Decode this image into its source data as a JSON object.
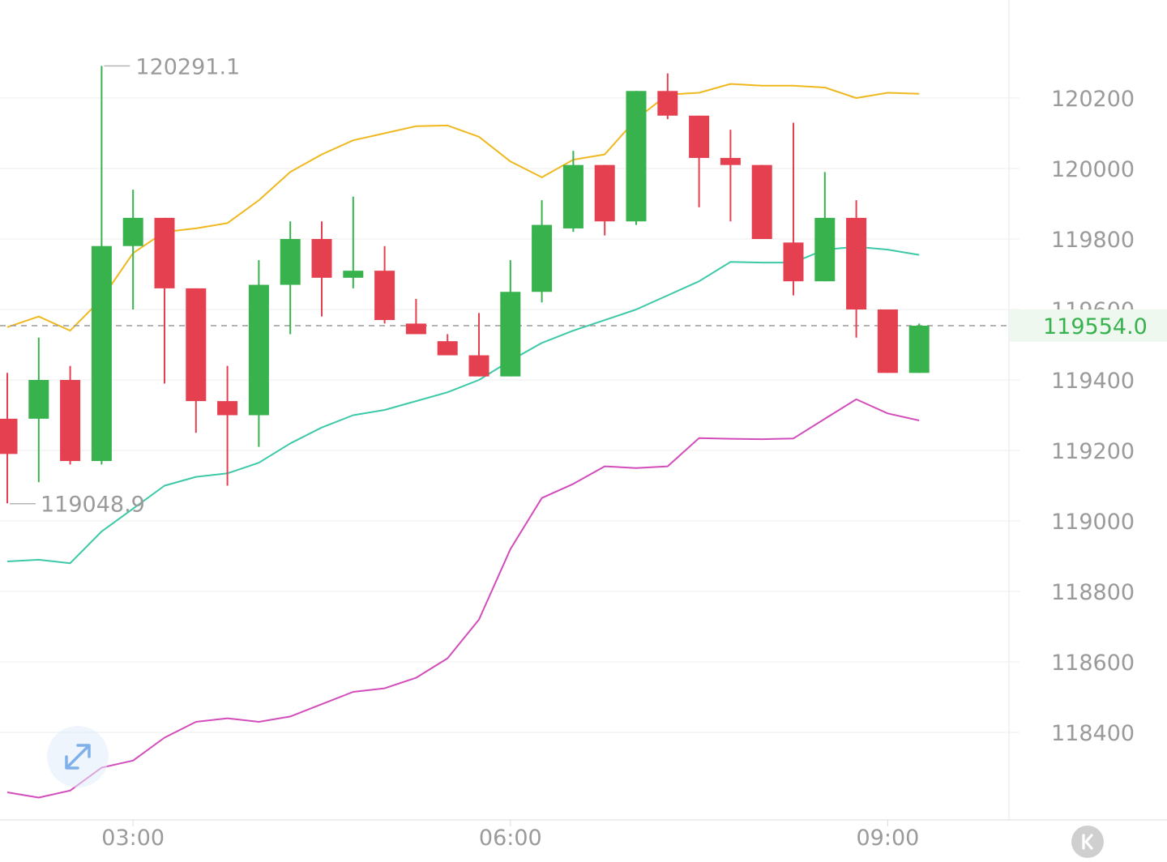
{
  "chart_data": {
    "type": "candlestick",
    "price_scale": {
      "ylim": [
        118200,
        120420
      ],
      "ticks": [
        {
          "value": 120200,
          "label": "120200"
        },
        {
          "value": 120000,
          "label": "120000"
        },
        {
          "value": 119800,
          "label": "119800"
        },
        {
          "value": 119600,
          "label": "119600"
        },
        {
          "value": 119400,
          "label": "119400"
        },
        {
          "value": 119200,
          "label": "119200"
        },
        {
          "value": 119000,
          "label": "119000"
        },
        {
          "value": 118800,
          "label": "118800"
        },
        {
          "value": 118600,
          "label": "118600"
        },
        {
          "value": 118400,
          "label": "118400"
        }
      ]
    },
    "time_axis": {
      "ticks": [
        {
          "index": 4,
          "label": "03:00"
        },
        {
          "index": 16,
          "label": "06:00"
        },
        {
          "index": 28,
          "label": "09:00"
        }
      ]
    },
    "candles": [
      {
        "o": 119290,
        "h": 119420,
        "l": 119050,
        "c": 119190
      },
      {
        "o": 119290,
        "h": 119520,
        "l": 119110,
        "c": 119400
      },
      {
        "o": 119400,
        "h": 119440,
        "l": 119160,
        "c": 119170
      },
      {
        "o": 119170,
        "h": 120291.1,
        "l": 119160,
        "c": 119780
      },
      {
        "o": 119780,
        "h": 119940,
        "l": 119600,
        "c": 119860
      },
      {
        "o": 119860,
        "h": 119860,
        "l": 119390,
        "c": 119660
      },
      {
        "o": 119660,
        "h": 119660,
        "l": 119250,
        "c": 119340
      },
      {
        "o": 119340,
        "h": 119440,
        "l": 119100,
        "c": 119300
      },
      {
        "o": 119300,
        "h": 119740,
        "l": 119210,
        "c": 119670
      },
      {
        "o": 119670,
        "h": 119850,
        "l": 119530,
        "c": 119800
      },
      {
        "o": 119800,
        "h": 119850,
        "l": 119580,
        "c": 119690
      },
      {
        "o": 119690,
        "h": 119920,
        "l": 119660,
        "c": 119710
      },
      {
        "o": 119710,
        "h": 119780,
        "l": 119560,
        "c": 119570
      },
      {
        "o": 119560,
        "h": 119630,
        "l": 119530,
        "c": 119530
      },
      {
        "o": 119510,
        "h": 119530,
        "l": 119470,
        "c": 119470
      },
      {
        "o": 119470,
        "h": 119590,
        "l": 119410,
        "c": 119410
      },
      {
        "o": 119410,
        "h": 119740,
        "l": 119410,
        "c": 119650
      },
      {
        "o": 119650,
        "h": 119910,
        "l": 119620,
        "c": 119840
      },
      {
        "o": 119830,
        "h": 120050,
        "l": 119820,
        "c": 120010
      },
      {
        "o": 120010,
        "h": 120010,
        "l": 119810,
        "c": 119850
      },
      {
        "o": 119850,
        "h": 120220,
        "l": 119840,
        "c": 120220
      },
      {
        "o": 120220,
        "h": 120270,
        "l": 120140,
        "c": 120150
      },
      {
        "o": 120150,
        "h": 120150,
        "l": 119890,
        "c": 120030
      },
      {
        "o": 120030,
        "h": 120110,
        "l": 119850,
        "c": 120010
      },
      {
        "o": 120010,
        "h": 120010,
        "l": 119800,
        "c": 119800
      },
      {
        "o": 119790,
        "h": 120130,
        "l": 119640,
        "c": 119680
      },
      {
        "o": 119680,
        "h": 119990,
        "l": 119680,
        "c": 119860
      },
      {
        "o": 119860,
        "h": 119910,
        "l": 119520,
        "c": 119600
      },
      {
        "o": 119600,
        "h": 119600,
        "l": 119420,
        "c": 119420
      },
      {
        "o": 119420,
        "h": 119560,
        "l": 119420,
        "c": 119554
      }
    ],
    "bands": {
      "upper": [
        119550,
        119580,
        119540,
        119630,
        119760,
        119820,
        119830,
        119845,
        119910,
        119990,
        120040,
        120080,
        120100,
        120120,
        120122,
        120090,
        120020,
        119975,
        120025,
        120040,
        120140,
        120210,
        120215,
        120240,
        120235,
        120235,
        120230,
        120200,
        120215,
        120212
      ],
      "middle": [
        118885,
        118890,
        118880,
        118970,
        119035,
        119100,
        119125,
        119135,
        119165,
        119220,
        119265,
        119300,
        119315,
        119340,
        119365,
        119400,
        119455,
        119505,
        119540,
        119570,
        119600,
        119640,
        119680,
        119735,
        119733,
        119733,
        119770,
        119778,
        119770,
        119755
      ],
      "lower": [
        118230,
        118215,
        118235,
        118300,
        118320,
        118385,
        118430,
        118440,
        118430,
        118445,
        118480,
        118515,
        118525,
        118555,
        118610,
        118720,
        118920,
        119065,
        119105,
        119155,
        119150,
        119155,
        119235,
        119233,
        119232,
        119234,
        119290,
        119345,
        119305,
        119285
      ]
    },
    "colors": {
      "up": "#37b24d",
      "down": "#e5404f",
      "upper": "#f0b81f",
      "middle": "#3cc9a7",
      "lower": "#d24dbb",
      "grid": "#ececec",
      "last_price": "#37b24d"
    },
    "high_marker": {
      "index": 3,
      "value": 120291.1,
      "label": "120291.1"
    },
    "low_marker": {
      "index": 0,
      "value": 119048.9,
      "label": "119048.9"
    },
    "last_price": {
      "value": 119554.0,
      "label": "119554.0"
    }
  }
}
